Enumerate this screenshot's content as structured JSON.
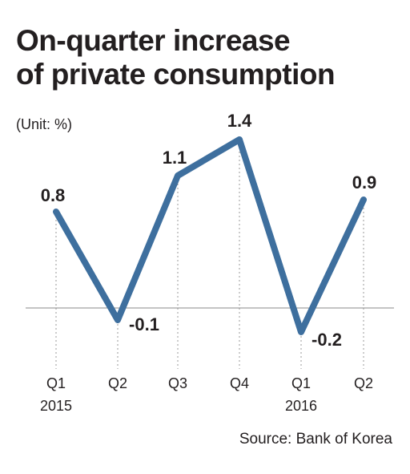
{
  "chart_data": {
    "type": "line",
    "title_lines": [
      "On-quarter increase",
      "of private consumption"
    ],
    "unit": "(Unit: %)",
    "source": "Source: Bank of Korea",
    "categories": [
      "Q1",
      "Q2",
      "Q3",
      "Q4",
      "Q1",
      "Q2"
    ],
    "years": [
      "2015",
      "",
      "",
      "",
      "2016",
      ""
    ],
    "series": [
      {
        "values": [
          0.8,
          -0.1,
          1.1,
          1.4,
          -0.2,
          0.9
        ],
        "labels": [
          "0.8",
          "-0.1",
          "1.1",
          "1.4",
          "-0.2",
          "0.9"
        ],
        "color": "#3e6f9e"
      }
    ],
    "ylim": [
      -0.3,
      1.5
    ],
    "grid": false,
    "zero_line": true
  }
}
